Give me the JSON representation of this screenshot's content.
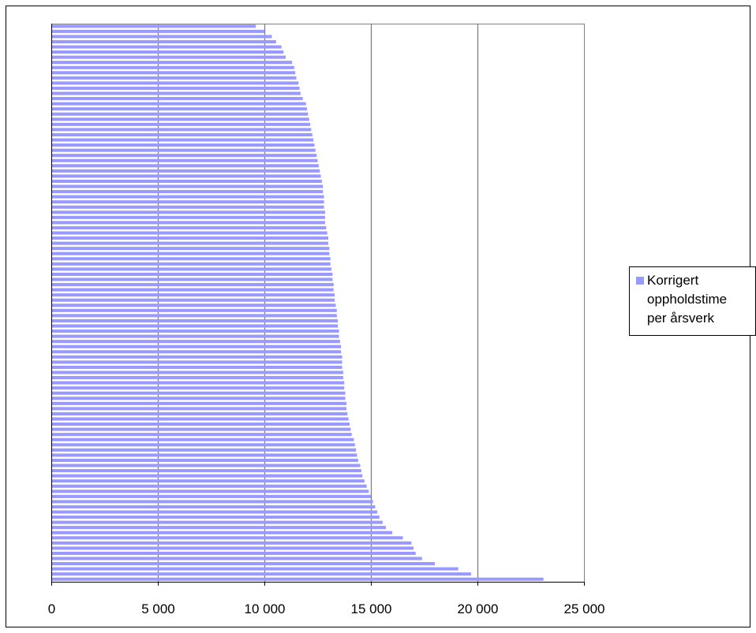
{
  "chart_data": {
    "type": "bar",
    "orientation": "horizontal",
    "title": "",
    "xlabel": "",
    "ylabel": "",
    "xlim": [
      0,
      25000
    ],
    "x_ticks": [
      0,
      5000,
      10000,
      15000,
      20000,
      25000
    ],
    "x_tick_labels": [
      "0",
      "5 000",
      "10 000",
      "15 000",
      "20 000",
      "25 000"
    ],
    "vertical_gridlines": true,
    "legend_position": "right",
    "colors": {
      "bar": "#9999ff",
      "gridline": "#808080",
      "axis": "#000000",
      "frame": "#000000"
    },
    "series": [
      {
        "name": "Korrigert oppholdstime per årsverk",
        "values": [
          9600,
          10000,
          10350,
          10550,
          10800,
          10900,
          11000,
          11300,
          11400,
          11450,
          11500,
          11600,
          11650,
          11700,
          11800,
          11950,
          12000,
          12050,
          12100,
          12150,
          12200,
          12250,
          12300,
          12350,
          12400,
          12450,
          12500,
          12550,
          12600,
          12650,
          12700,
          12750,
          12750,
          12800,
          12800,
          12800,
          12850,
          12850,
          12850,
          12900,
          12950,
          13000,
          13000,
          13050,
          13050,
          13100,
          13100,
          13150,
          13200,
          13200,
          13250,
          13250,
          13300,
          13300,
          13350,
          13400,
          13400,
          13450,
          13450,
          13500,
          13500,
          13550,
          13600,
          13600,
          13650,
          13650,
          13650,
          13700,
          13700,
          13750,
          13750,
          13800,
          13800,
          13850,
          13850,
          13900,
          13950,
          14000,
          14050,
          14100,
          14200,
          14250,
          14300,
          14350,
          14400,
          14500,
          14550,
          14600,
          14700,
          14800,
          14900,
          15000,
          15100,
          15200,
          15300,
          15400,
          15550,
          15700,
          16000,
          16500,
          16900,
          17000,
          17100,
          17400,
          18000,
          19100,
          19700,
          23100
        ]
      }
    ]
  }
}
